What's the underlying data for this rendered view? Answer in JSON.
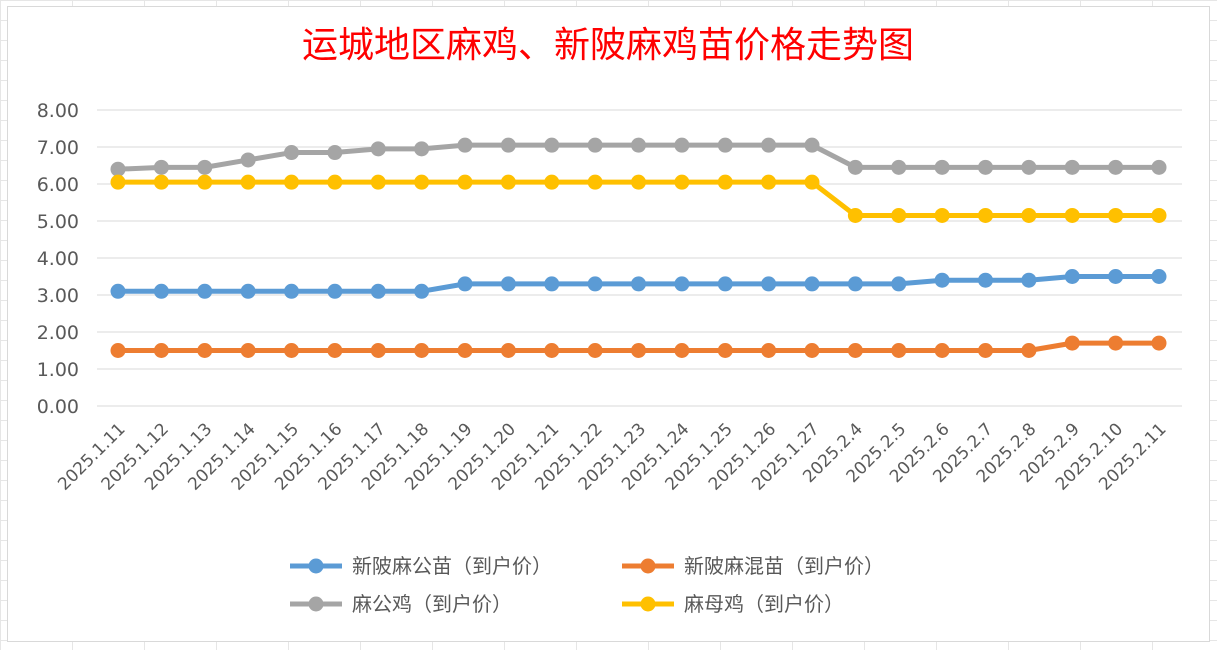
{
  "chart_data": {
    "type": "line",
    "title": "运城地区麻鸡、新陂麻鸡苗价格走势图",
    "xlabel": "",
    "ylabel": "",
    "ylim": [
      0,
      8
    ],
    "yticks": [
      "0.00",
      "1.00",
      "2.00",
      "3.00",
      "4.00",
      "5.00",
      "6.00",
      "7.00",
      "8.00"
    ],
    "grid": "horizontal",
    "legend_position": "bottom",
    "categories": [
      "2025.1.11",
      "2025.1.12",
      "2025.1.13",
      "2025.1.14",
      "2025.1.15",
      "2025.1.16",
      "2025.1.17",
      "2025.1.18",
      "2025.1.19",
      "2025.1.20",
      "2025.1.21",
      "2025.1.22",
      "2025.1.23",
      "2025.1.24",
      "2025.1.25",
      "2025.1.26",
      "2025.1.27",
      "2025.2.4",
      "2025.2.5",
      "2025.2.6",
      "2025.2.7",
      "2025.2.8",
      "2025.2.9",
      "2025.2.10",
      "2025.2.11"
    ],
    "series": [
      {
        "name": "新陂麻公苗（到户价）",
        "color": "#5b9bd5",
        "values": [
          3.1,
          3.1,
          3.1,
          3.1,
          3.1,
          3.1,
          3.1,
          3.1,
          3.3,
          3.3,
          3.3,
          3.3,
          3.3,
          3.3,
          3.3,
          3.3,
          3.3,
          3.3,
          3.3,
          3.4,
          3.4,
          3.4,
          3.5,
          3.5,
          3.5
        ]
      },
      {
        "name": "新陂麻混苗（到户价）",
        "color": "#ed7d31",
        "values": [
          1.5,
          1.5,
          1.5,
          1.5,
          1.5,
          1.5,
          1.5,
          1.5,
          1.5,
          1.5,
          1.5,
          1.5,
          1.5,
          1.5,
          1.5,
          1.5,
          1.5,
          1.5,
          1.5,
          1.5,
          1.5,
          1.5,
          1.7,
          1.7,
          1.7
        ]
      },
      {
        "name": "麻公鸡（到户价）",
        "color": "#a5a5a5",
        "values": [
          6.4,
          6.45,
          6.45,
          6.65,
          6.85,
          6.85,
          6.95,
          6.95,
          7.05,
          7.05,
          7.05,
          7.05,
          7.05,
          7.05,
          7.05,
          7.05,
          7.05,
          6.45,
          6.45,
          6.45,
          6.45,
          6.45,
          6.45,
          6.45,
          6.45
        ]
      },
      {
        "name": "麻母鸡（到户价）",
        "color": "#ffc000",
        "values": [
          6.05,
          6.05,
          6.05,
          6.05,
          6.05,
          6.05,
          6.05,
          6.05,
          6.05,
          6.05,
          6.05,
          6.05,
          6.05,
          6.05,
          6.05,
          6.05,
          6.05,
          5.15,
          5.15,
          5.15,
          5.15,
          5.15,
          5.15,
          5.15,
          5.15
        ]
      }
    ]
  }
}
